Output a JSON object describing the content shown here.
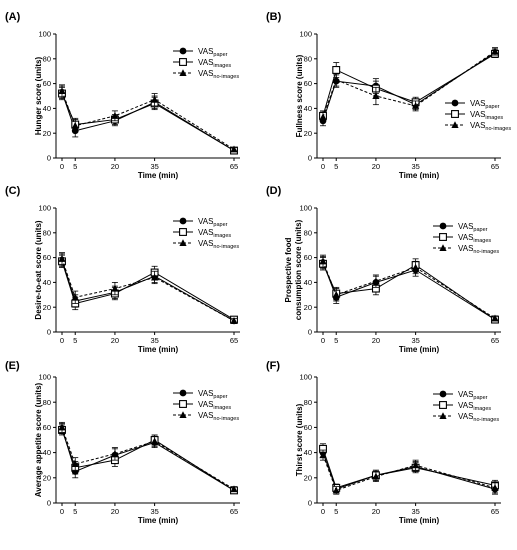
{
  "figure": {
    "legend_labels": [
      {
        "base": "VAS",
        "sub": "paper"
      },
      {
        "base": "VAS",
        "sub": "images"
      },
      {
        "base": "VAS",
        "sub": "no-images"
      }
    ],
    "series_styles": [
      {
        "marker": "circle-filled",
        "line": "solid",
        "color": "#000000"
      },
      {
        "marker": "square-open",
        "line": "solid",
        "color": "#000000"
      },
      {
        "marker": "triangle-filled",
        "line": "dashed",
        "color": "#000000"
      }
    ]
  },
  "chart_data": [
    {
      "type": "line",
      "panel": "(A)",
      "xlabel": "Time (min)",
      "ylabel": "Hunger score (units)",
      "x": [
        0,
        5,
        20,
        35,
        65
      ],
      "xticks": [
        0,
        5,
        20,
        35,
        65
      ],
      "ylim": [
        0,
        100
      ],
      "yticks": [
        0,
        20,
        40,
        60,
        80,
        100
      ],
      "legend_position": "top-right",
      "series": [
        {
          "values": [
            53,
            22,
            30,
            45,
            6
          ],
          "errors": [
            5,
            5,
            4,
            5,
            1.5
          ]
        },
        {
          "values": [
            52,
            27,
            31,
            44,
            6
          ],
          "errors": [
            5,
            5,
            4,
            5,
            1.5
          ]
        },
        {
          "values": [
            54,
            26,
            34,
            47,
            7
          ],
          "errors": [
            5,
            5,
            4,
            5,
            1.5
          ]
        }
      ]
    },
    {
      "type": "line",
      "panel": "(B)",
      "xlabel": "Time (min)",
      "ylabel": "Fullness score (units)",
      "x": [
        0,
        5,
        20,
        35,
        65
      ],
      "xticks": [
        0,
        5,
        20,
        35,
        65
      ],
      "ylim": [
        0,
        100
      ],
      "yticks": [
        0,
        20,
        40,
        60,
        80,
        100
      ],
      "legend_position": "bottom-right",
      "series": [
        {
          "values": [
            30,
            62,
            58,
            43,
            85
          ],
          "errors": [
            4,
            5,
            6,
            4,
            3
          ]
        },
        {
          "values": [
            34,
            71,
            56,
            45,
            84
          ],
          "errors": [
            4,
            6,
            6,
            4,
            3
          ]
        },
        {
          "values": [
            33,
            63,
            50,
            42,
            86
          ],
          "errors": [
            4,
            5,
            7,
            4,
            3
          ]
        }
      ]
    },
    {
      "type": "line",
      "panel": "(C)",
      "xlabel": "Time (min)",
      "ylabel": "Desire-to-eat score (units)",
      "x": [
        0,
        5,
        20,
        35,
        65
      ],
      "xticks": [
        0,
        5,
        20,
        35,
        65
      ],
      "ylim": [
        0,
        100
      ],
      "yticks": [
        0,
        20,
        40,
        60,
        80,
        100
      ],
      "legend_position": "top-right",
      "series": [
        {
          "values": [
            58,
            25,
            32,
            45,
            9
          ],
          "errors": [
            5,
            5,
            5,
            5,
            2
          ]
        },
        {
          "values": [
            57,
            23,
            31,
            48,
            10
          ],
          "errors": [
            5,
            5,
            5,
            5,
            2
          ]
        },
        {
          "values": [
            59,
            28,
            35,
            44,
            9
          ],
          "errors": [
            5,
            5,
            5,
            5,
            2
          ]
        }
      ]
    },
    {
      "type": "line",
      "panel": "(D)",
      "xlabel": "Time (min)",
      "ylabel": "Prospective food consumption score (units)",
      "x": [
        0,
        5,
        20,
        35,
        65
      ],
      "xticks": [
        0,
        5,
        20,
        35,
        65
      ],
      "ylim": [
        0,
        100
      ],
      "yticks": [
        0,
        20,
        40,
        60,
        80,
        100
      ],
      "legend_position": "top-right",
      "series": [
        {
          "values": [
            56,
            28,
            40,
            50,
            10
          ],
          "errors": [
            5,
            5,
            5,
            5,
            2
          ]
        },
        {
          "values": [
            55,
            31,
            35,
            54,
            10
          ],
          "errors": [
            5,
            5,
            5,
            5,
            2
          ]
        },
        {
          "values": [
            57,
            30,
            41,
            52,
            11
          ],
          "errors": [
            5,
            5,
            5,
            5,
            2
          ]
        }
      ]
    },
    {
      "type": "line",
      "panel": "(E)",
      "xlabel": "Time (min)",
      "ylabel": "Average appetite score (units)",
      "x": [
        0,
        5,
        20,
        35,
        65
      ],
      "xticks": [
        0,
        5,
        20,
        35,
        65
      ],
      "ylim": [
        0,
        100
      ],
      "yticks": [
        0,
        20,
        40,
        60,
        80,
        100
      ],
      "legend_position": "top-right",
      "series": [
        {
          "values": [
            59,
            25,
            38,
            48,
            10
          ],
          "errors": [
            4,
            5,
            5,
            4,
            2
          ]
        },
        {
          "values": [
            58,
            28,
            34,
            50,
            10
          ],
          "errors": [
            4,
            5,
            5,
            4,
            2
          ]
        },
        {
          "values": [
            60,
            31,
            39,
            49,
            11
          ],
          "errors": [
            4,
            5,
            5,
            4,
            2
          ]
        }
      ]
    },
    {
      "type": "line",
      "panel": "(F)",
      "xlabel": "Time (min)",
      "ylabel": "Thirst score (units)",
      "x": [
        0,
        5,
        20,
        35,
        65
      ],
      "xticks": [
        0,
        5,
        20,
        35,
        65
      ],
      "ylim": [
        0,
        100
      ],
      "yticks": [
        0,
        20,
        40,
        60,
        80,
        100
      ],
      "legend_position": "top-right",
      "series": [
        {
          "values": [
            40,
            11,
            22,
            29,
            11
          ],
          "errors": [
            4,
            3,
            4,
            4,
            4
          ]
        },
        {
          "values": [
            43,
            12,
            22,
            28,
            14
          ],
          "errors": [
            4,
            3,
            4,
            4,
            4
          ]
        },
        {
          "values": [
            38,
            10,
            21,
            30,
            12
          ],
          "errors": [
            4,
            3,
            4,
            4,
            4
          ]
        }
      ]
    }
  ]
}
